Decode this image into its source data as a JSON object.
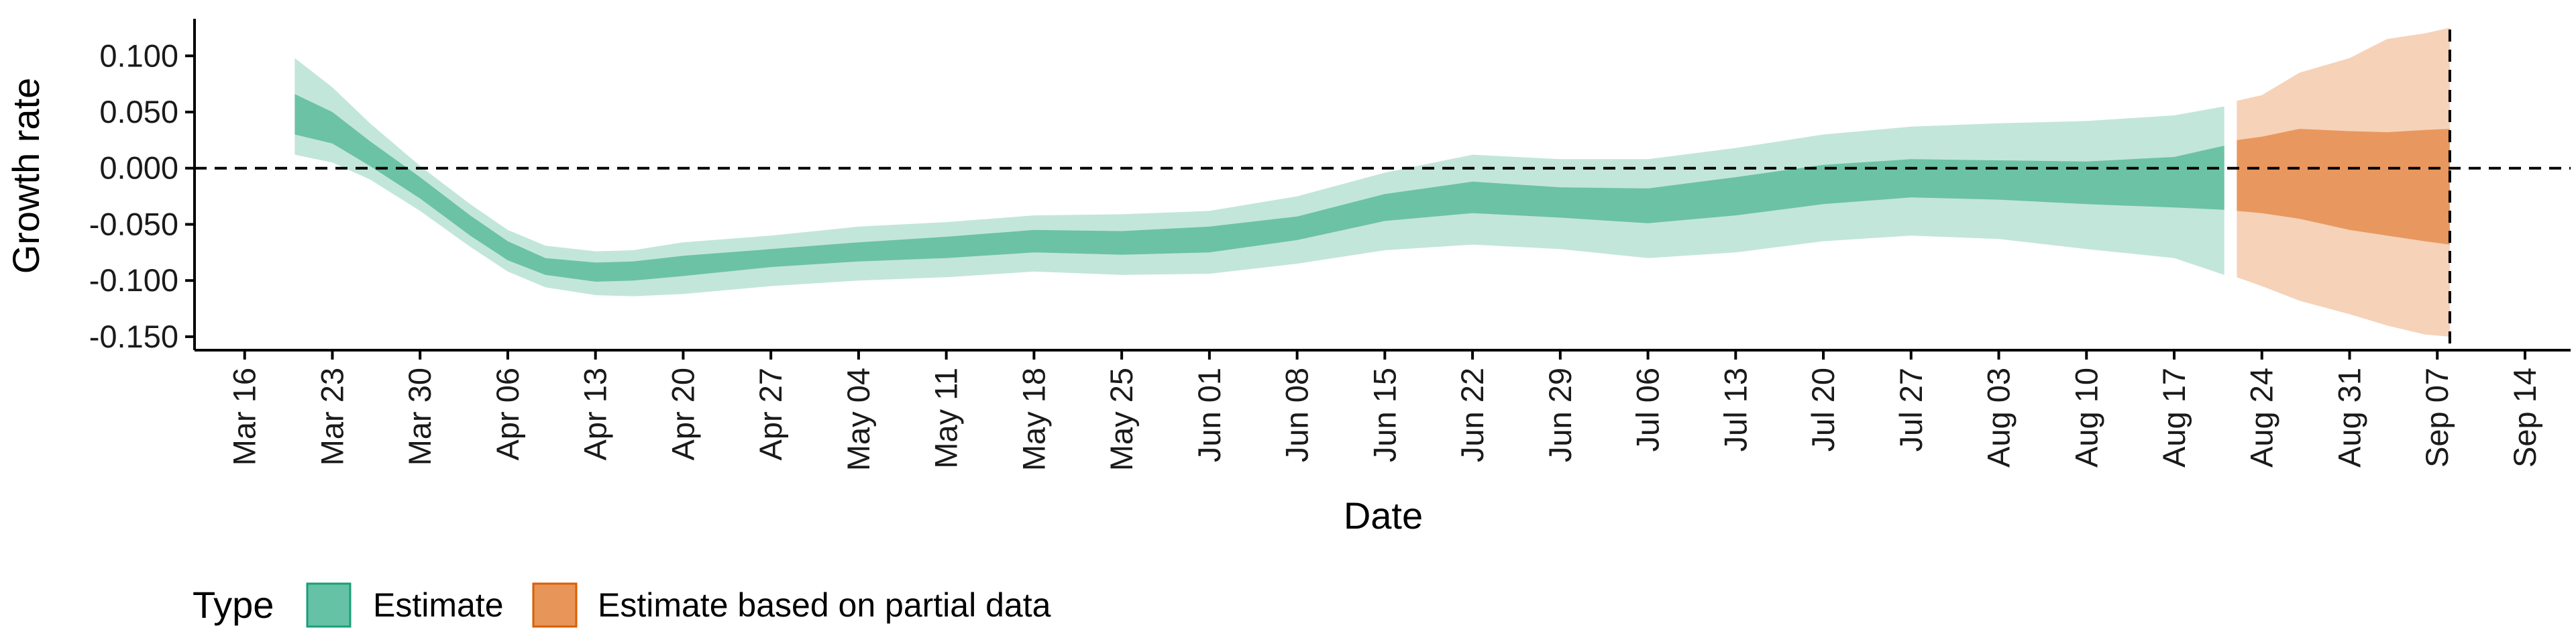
{
  "chart_data": {
    "type": "area",
    "xlabel": "Date",
    "ylabel": "Growth rate",
    "xlim": [
      "2020-03-12",
      "2020-09-17"
    ],
    "ylim": [
      -0.162,
      0.133
    ],
    "y_ticks": [
      0.1,
      0.05,
      0.0,
      -0.05,
      -0.1,
      -0.15
    ],
    "y_tick_labels": [
      "0.100",
      "0.050",
      "0.000",
      "-0.050",
      "-0.100",
      "-0.150"
    ],
    "x_ticks": [
      "2020-03-16",
      "2020-03-23",
      "2020-03-30",
      "2020-04-06",
      "2020-04-13",
      "2020-04-20",
      "2020-04-27",
      "2020-05-04",
      "2020-05-11",
      "2020-05-18",
      "2020-05-25",
      "2020-06-01",
      "2020-06-08",
      "2020-06-15",
      "2020-06-22",
      "2020-06-29",
      "2020-07-06",
      "2020-07-13",
      "2020-07-20",
      "2020-07-27",
      "2020-08-03",
      "2020-08-10",
      "2020-08-17",
      "2020-08-24",
      "2020-08-31",
      "2020-09-07",
      "2020-09-14"
    ],
    "x_tick_labels": [
      "Mar 16",
      "Mar 23",
      "Mar 30",
      "Apr 06",
      "Apr 13",
      "Apr 20",
      "Apr 27",
      "May 04",
      "May 11",
      "May 18",
      "May 25",
      "Jun 01",
      "Jun 08",
      "Jun 15",
      "Jun 22",
      "Jun 29",
      "Jul 06",
      "Jul 13",
      "Jul 20",
      "Jul 27",
      "Aug 03",
      "Aug 10",
      "Aug 17",
      "Aug 24",
      "Aug 31",
      "Sep 07",
      "Sep 14"
    ],
    "reference_lines": [
      {
        "axis": "y",
        "value": 0.0,
        "style": "dashed"
      },
      {
        "axis": "x",
        "value": "2020-09-08",
        "style": "dashed"
      }
    ],
    "legend": {
      "title": "Type",
      "position": "bottom-left",
      "entries": [
        {
          "label": "Estimate",
          "fill": "#66c2a5",
          "stroke": "#1b9e77"
        },
        {
          "label": "Estimate based on partial data",
          "fill": "#e8955a",
          "stroke": "#d95f02"
        }
      ]
    },
    "series": [
      {
        "name": "Estimate",
        "colors": {
          "inner": "#6cc2a5",
          "outer": "#c3e6da"
        },
        "points": [
          {
            "x": "2020-03-20",
            "outer_lo": 0.012,
            "outer_hi": 0.098,
            "inner_lo": 0.03,
            "inner_hi": 0.066
          },
          {
            "x": "2020-03-23",
            "outer_lo": 0.005,
            "outer_hi": 0.072,
            "inner_lo": 0.022,
            "inner_hi": 0.05
          },
          {
            "x": "2020-03-26",
            "outer_lo": -0.01,
            "outer_hi": 0.04,
            "inner_lo": 0.002,
            "inner_hi": 0.024
          },
          {
            "x": "2020-03-30",
            "outer_lo": -0.038,
            "outer_hi": 0.002,
            "inner_lo": -0.027,
            "inner_hi": -0.008
          },
          {
            "x": "2020-04-03",
            "outer_lo": -0.07,
            "outer_hi": -0.032,
            "inner_lo": -0.06,
            "inner_hi": -0.042
          },
          {
            "x": "2020-04-06",
            "outer_lo": -0.092,
            "outer_hi": -0.055,
            "inner_lo": -0.082,
            "inner_hi": -0.065
          },
          {
            "x": "2020-04-09",
            "outer_lo": -0.106,
            "outer_hi": -0.069,
            "inner_lo": -0.095,
            "inner_hi": -0.08
          },
          {
            "x": "2020-04-13",
            "outer_lo": -0.113,
            "outer_hi": -0.074,
            "inner_lo": -0.101,
            "inner_hi": -0.084
          },
          {
            "x": "2020-04-16",
            "outer_lo": -0.114,
            "outer_hi": -0.073,
            "inner_lo": -0.1,
            "inner_hi": -0.083
          },
          {
            "x": "2020-04-20",
            "outer_lo": -0.112,
            "outer_hi": -0.066,
            "inner_lo": -0.096,
            "inner_hi": -0.078
          },
          {
            "x": "2020-04-27",
            "outer_lo": -0.105,
            "outer_hi": -0.06,
            "inner_lo": -0.088,
            "inner_hi": -0.072
          },
          {
            "x": "2020-05-04",
            "outer_lo": -0.1,
            "outer_hi": -0.052,
            "inner_lo": -0.083,
            "inner_hi": -0.066
          },
          {
            "x": "2020-05-11",
            "outer_lo": -0.097,
            "outer_hi": -0.048,
            "inner_lo": -0.08,
            "inner_hi": -0.061
          },
          {
            "x": "2020-05-18",
            "outer_lo": -0.092,
            "outer_hi": -0.042,
            "inner_lo": -0.075,
            "inner_hi": -0.055
          },
          {
            "x": "2020-05-25",
            "outer_lo": -0.095,
            "outer_hi": -0.041,
            "inner_lo": -0.077,
            "inner_hi": -0.056
          },
          {
            "x": "2020-06-01",
            "outer_lo": -0.094,
            "outer_hi": -0.038,
            "inner_lo": -0.075,
            "inner_hi": -0.052
          },
          {
            "x": "2020-06-08",
            "outer_lo": -0.085,
            "outer_hi": -0.025,
            "inner_lo": -0.064,
            "inner_hi": -0.043
          },
          {
            "x": "2020-06-15",
            "outer_lo": -0.073,
            "outer_hi": -0.004,
            "inner_lo": -0.047,
            "inner_hi": -0.023
          },
          {
            "x": "2020-06-22",
            "outer_lo": -0.068,
            "outer_hi": 0.012,
            "inner_lo": -0.04,
            "inner_hi": -0.012
          },
          {
            "x": "2020-06-29",
            "outer_lo": -0.072,
            "outer_hi": 0.008,
            "inner_lo": -0.044,
            "inner_hi": -0.017
          },
          {
            "x": "2020-07-06",
            "outer_lo": -0.08,
            "outer_hi": 0.008,
            "inner_lo": -0.049,
            "inner_hi": -0.018
          },
          {
            "x": "2020-07-13",
            "outer_lo": -0.075,
            "outer_hi": 0.018,
            "inner_lo": -0.042,
            "inner_hi": -0.008
          },
          {
            "x": "2020-07-20",
            "outer_lo": -0.065,
            "outer_hi": 0.03,
            "inner_lo": -0.032,
            "inner_hi": 0.003
          },
          {
            "x": "2020-07-27",
            "outer_lo": -0.06,
            "outer_hi": 0.037,
            "inner_lo": -0.026,
            "inner_hi": 0.008
          },
          {
            "x": "2020-08-03",
            "outer_lo": -0.063,
            "outer_hi": 0.04,
            "inner_lo": -0.028,
            "inner_hi": 0.007
          },
          {
            "x": "2020-08-10",
            "outer_lo": -0.072,
            "outer_hi": 0.042,
            "inner_lo": -0.032,
            "inner_hi": 0.006
          },
          {
            "x": "2020-08-17",
            "outer_lo": -0.08,
            "outer_hi": 0.047,
            "inner_lo": -0.035,
            "inner_hi": 0.01
          },
          {
            "x": "2020-08-21",
            "outer_lo": -0.095,
            "outer_hi": 0.055,
            "inner_lo": -0.037,
            "inner_hi": 0.02
          }
        ]
      },
      {
        "name": "Estimate based on partial data",
        "colors": {
          "inner": "#e8985e",
          "outer": "#f6d2b8"
        },
        "points": [
          {
            "x": "2020-08-22",
            "outer_lo": -0.097,
            "outer_hi": 0.06,
            "inner_lo": -0.038,
            "inner_hi": 0.025
          },
          {
            "x": "2020-08-24",
            "outer_lo": -0.105,
            "outer_hi": 0.065,
            "inner_lo": -0.04,
            "inner_hi": 0.028
          },
          {
            "x": "2020-08-27",
            "outer_lo": -0.118,
            "outer_hi": 0.085,
            "inner_lo": -0.045,
            "inner_hi": 0.035
          },
          {
            "x": "2020-08-31",
            "outer_lo": -0.13,
            "outer_hi": 0.098,
            "inner_lo": -0.055,
            "inner_hi": 0.033
          },
          {
            "x": "2020-09-03",
            "outer_lo": -0.14,
            "outer_hi": 0.115,
            "inner_lo": -0.06,
            "inner_hi": 0.032
          },
          {
            "x": "2020-09-06",
            "outer_lo": -0.148,
            "outer_hi": 0.12,
            "inner_lo": -0.065,
            "inner_hi": 0.034
          },
          {
            "x": "2020-09-08",
            "outer_lo": -0.15,
            "outer_hi": 0.125,
            "inner_lo": -0.068,
            "inner_hi": 0.035
          }
        ]
      }
    ]
  }
}
